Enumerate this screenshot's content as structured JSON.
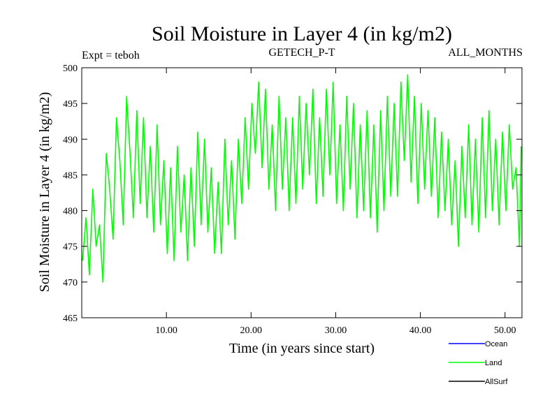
{
  "chart_data": {
    "type": "line",
    "title": "Soil Moisture in Layer 4 (in kg/m2)",
    "subtitle_left": "Expt = teboh",
    "subtitle_center": "GETECH_P-T",
    "subtitle_right": "ALL_MONTHS",
    "xlabel": "Time (in years since start)",
    "ylabel": "Soil Moisture in Layer 4 (in kg/m2)",
    "xlim": [
      0,
      52
    ],
    "ylim": [
      465,
      500
    ],
    "x_ticks": [
      10,
      20,
      30,
      40,
      50
    ],
    "x_tick_labels": [
      "10.00",
      "20.00",
      "30.00",
      "40.00",
      "50.00"
    ],
    "y_ticks": [
      465,
      470,
      475,
      480,
      485,
      490,
      495,
      500
    ],
    "y_tick_labels": [
      "465",
      "470",
      "475",
      "480",
      "485",
      "490",
      "495",
      "500"
    ],
    "legend": [
      {
        "name": "Ocean",
        "color": "#0000ff"
      },
      {
        "name": "Land",
        "color": "#00ff00"
      },
      {
        "name": "AllSurf",
        "color": "#000000"
      }
    ],
    "series": [
      {
        "name": "Land",
        "color": "#00ff00",
        "x": [
          0.1,
          0.5,
          0.9,
          1.3,
          1.7,
          2.1,
          2.5,
          2.9,
          3.3,
          3.7,
          4.1,
          4.5,
          4.9,
          5.3,
          5.7,
          6.1,
          6.5,
          6.9,
          7.3,
          7.7,
          8.1,
          8.5,
          8.9,
          9.3,
          9.7,
          10.1,
          10.5,
          10.9,
          11.3,
          11.7,
          12.1,
          12.5,
          12.9,
          13.3,
          13.7,
          14.1,
          14.5,
          14.9,
          15.3,
          15.7,
          16.1,
          16.5,
          16.9,
          17.3,
          17.7,
          18.1,
          18.5,
          18.9,
          19.3,
          19.7,
          20.1,
          20.5,
          20.9,
          21.3,
          21.7,
          22.1,
          22.5,
          22.9,
          23.3,
          23.7,
          24.1,
          24.5,
          24.9,
          25.3,
          25.7,
          26.1,
          26.5,
          26.9,
          27.3,
          27.7,
          28.1,
          28.5,
          28.9,
          29.3,
          29.7,
          30.1,
          30.5,
          30.9,
          31.3,
          31.7,
          32.1,
          32.5,
          32.9,
          33.3,
          33.7,
          34.1,
          34.5,
          34.9,
          35.3,
          35.7,
          36.1,
          36.5,
          36.9,
          37.3,
          37.7,
          38.1,
          38.5,
          38.9,
          39.3,
          39.7,
          40.1,
          40.5,
          40.9,
          41.3,
          41.7,
          42.1,
          42.5,
          42.9,
          43.3,
          43.7,
          44.1,
          44.5,
          44.9,
          45.3,
          45.7,
          46.1,
          46.5,
          46.9,
          47.3,
          47.7,
          48.1,
          48.5,
          48.9,
          49.3,
          49.7,
          50.1,
          50.5,
          50.9,
          51.3,
          51.7,
          51.9
        ],
        "y": [
          473,
          479,
          471,
          483,
          475,
          478,
          470,
          488,
          483,
          476,
          493,
          487,
          478,
          496,
          488,
          479,
          494,
          481,
          493,
          479,
          489,
          477,
          492,
          478,
          487,
          474,
          486,
          473,
          489,
          477,
          485,
          473,
          486,
          475,
          491,
          478,
          490,
          477,
          486,
          474,
          484,
          474,
          490,
          478,
          487,
          476,
          490,
          481,
          493,
          483,
          495,
          488,
          498,
          486,
          497,
          483,
          492,
          480,
          496,
          483,
          493,
          480,
          493,
          481,
          496,
          483,
          495,
          485,
          497,
          481,
          493,
          482,
          497,
          485,
          498,
          481,
          492,
          480,
          496,
          483,
          495,
          479,
          492,
          480,
          494,
          479,
          492,
          477,
          494,
          480,
          496,
          482,
          495,
          482,
          498,
          487,
          499,
          484,
          496,
          481,
          495,
          483,
          494,
          482,
          493,
          479,
          491,
          480,
          490,
          478,
          487,
          475,
          489,
          479,
          492,
          478,
          490,
          477,
          493,
          479,
          494,
          480,
          490,
          478,
          491,
          480,
          492,
          483,
          486,
          475,
          489
        ]
      },
      {
        "name": "Ocean",
        "color": "#0000ff",
        "x": [],
        "y": []
      },
      {
        "name": "AllSurf",
        "color": "#000000",
        "x": [],
        "y": []
      }
    ]
  }
}
